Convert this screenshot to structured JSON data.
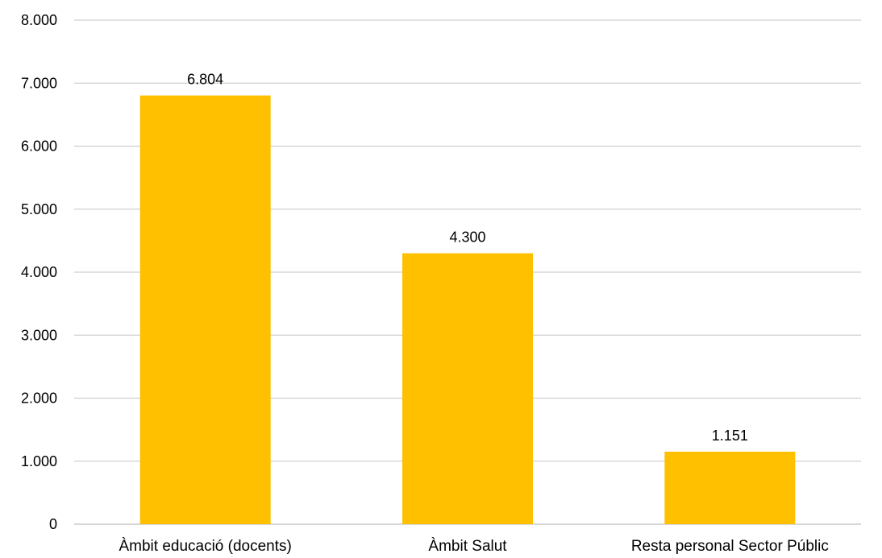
{
  "chart_data": {
    "type": "bar",
    "categories": [
      "Àmbit educació (docents)",
      "Àmbit Salut",
      "Resta personal Sector Públic"
    ],
    "values": [
      6804,
      4300,
      1151
    ],
    "value_labels": [
      "6.804",
      "4.300",
      "1.151"
    ],
    "ylim": [
      0,
      8000
    ],
    "yticks": [
      0,
      1000,
      2000,
      3000,
      4000,
      5000,
      6000,
      7000,
      8000
    ],
    "ytick_labels": [
      "0",
      "1.000",
      "2.000",
      "3.000",
      "4.000",
      "5.000",
      "6.000",
      "7.000",
      "8.000"
    ],
    "grid": true,
    "legend": "none",
    "bar_color": "#FFC000"
  }
}
